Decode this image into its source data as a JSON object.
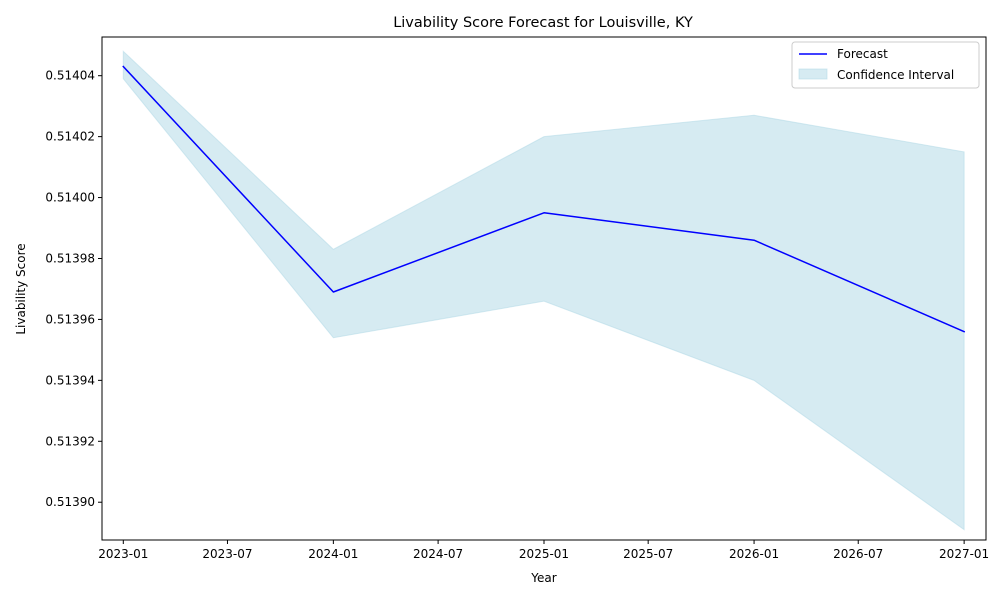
{
  "chart_data": {
    "type": "line",
    "title": "Livability Score Forecast for Louisville, KY",
    "xlabel": "Year",
    "ylabel": "Livability Score",
    "x": [
      "2023-01",
      "2024-01",
      "2025-01",
      "2026-01",
      "2027-01"
    ],
    "series": [
      {
        "name": "Forecast",
        "color": "#0000ff",
        "values": [
          0.514043,
          0.513969,
          0.513995,
          0.513986,
          0.513956
        ]
      }
    ],
    "confidence_interval": {
      "name": "Confidence Interval",
      "color": "#add8e6",
      "lower": [
        0.514039,
        0.513954,
        0.513966,
        0.51394,
        0.513891
      ],
      "upper": [
        0.514048,
        0.513983,
        0.51402,
        0.514027,
        0.514015
      ]
    },
    "xticks": [
      "2023-01",
      "2023-07",
      "2024-01",
      "2024-07",
      "2025-01",
      "2025-07",
      "2026-01",
      "2026-07",
      "2027-01"
    ],
    "yticks": [
      "0.51390",
      "0.51392",
      "0.51394",
      "0.51396",
      "0.51398",
      "0.51400",
      "0.51402",
      "0.51404"
    ],
    "ylim": [
      0.5138876,
      0.5140527
    ],
    "xlim": [
      "2022-11-25",
      "2027-02-08"
    ],
    "legend_position": "top-right",
    "grid": false
  }
}
